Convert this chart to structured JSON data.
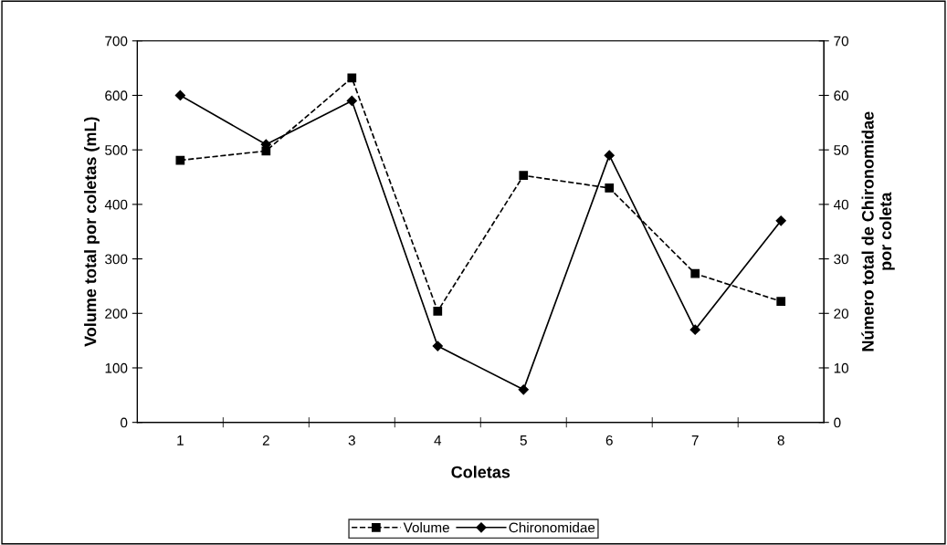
{
  "chart_data": {
    "type": "line",
    "xlabel": "Coletas",
    "ylabel": "Volume total por coletas (mL)",
    "y2label": "Número total de Chironomidae\npor coleta",
    "categories": [
      "1",
      "2",
      "3",
      "4",
      "5",
      "6",
      "7",
      "8"
    ],
    "series": [
      {
        "name": "Volume",
        "color": "#000000",
        "values": [
          481,
          498,
          632,
          204,
          453,
          430,
          273,
          222
        ],
        "marker": "square",
        "line_style": "dashed"
      },
      {
        "name": "Chironomidae",
        "color": "#000000",
        "values": [
          60,
          51,
          59,
          14,
          6,
          49,
          17,
          37
        ],
        "marker": "diamond",
        "line_style": "solid",
        "axis": "y2"
      }
    ],
    "ylim": [
      0,
      700
    ],
    "yticks": [
      0,
      100,
      200,
      300,
      400,
      500,
      600,
      700
    ],
    "y2lim": [
      0,
      70
    ],
    "y2ticks": [
      0,
      10,
      20,
      30,
      40,
      50,
      60,
      70
    ],
    "grid": false,
    "legend": "bottom"
  }
}
